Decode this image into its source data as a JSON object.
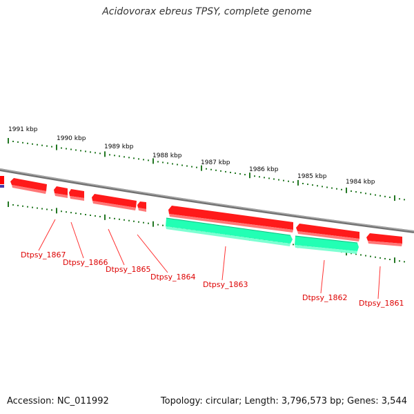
{
  "title": "Acidovorax ebreus TPSY, complete genome",
  "footer": {
    "accession": "Accession: NC_011992",
    "topology": "Topology: circular; Length: 3,796,573 bp; Genes: 3,544"
  },
  "colors": {
    "gene_red": "#ff0000",
    "gene_teal": "#22ffb4",
    "backbone": "#888888",
    "tick": "#227722",
    "label_red": "#dd0000"
  },
  "scale_labels": [
    "1991 kbp",
    "1990 kbp",
    "1989 kbp",
    "1988 kbp",
    "1987 kbp",
    "1986 kbp",
    "1985 kbp",
    "1984 kbp"
  ],
  "gene_labels": [
    "Dtpsy_1867",
    "Dtpsy_1866",
    "Dtpsy_1865",
    "Dtpsy_1864",
    "Dtpsy_1863",
    "Dtpsy_1862",
    "Dtpsy_1861"
  ]
}
